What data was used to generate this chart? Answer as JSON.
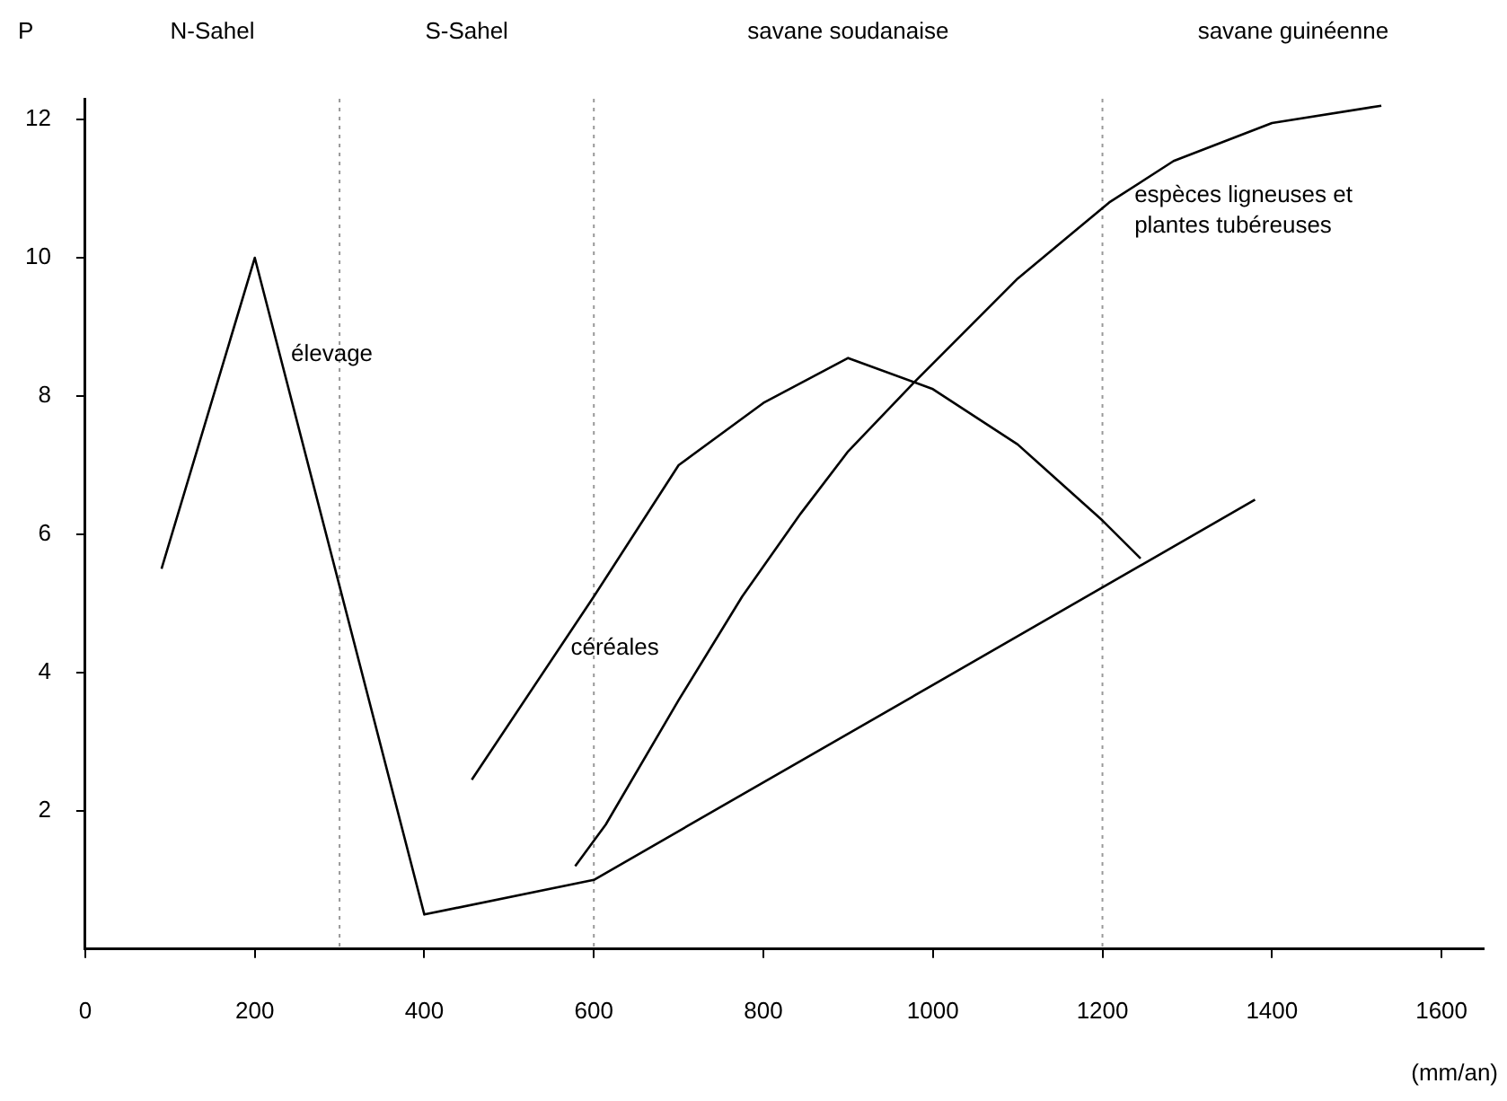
{
  "chart_data": {
    "type": "line",
    "ylabel": "P",
    "xlabel": "(mm/an)",
    "xlim": [
      0,
      1650
    ],
    "xticks": [
      0,
      200,
      400,
      600,
      800,
      1000,
      1200,
      1400,
      1600
    ],
    "ylim": [
      0,
      12.3
    ],
    "yticks": [
      2,
      4,
      6,
      8,
      10,
      12
    ],
    "grid": false,
    "legend": false,
    "marker": "none",
    "line_style": "solid",
    "series": [
      {
        "color": "#000000",
        "x": [
          90,
          200,
          400,
          600,
          1380
        ],
        "values": [
          5.5,
          10,
          0.5,
          1,
          6.5
        ]
      },
      {
        "color": "#000000",
        "x": [
          456,
          600,
          700,
          800,
          900,
          1000,
          1100,
          1200,
          1245
        ],
        "values": [
          2.45,
          5.1,
          7,
          7.9,
          8.55,
          8.1,
          7.3,
          6.2,
          5.65
        ]
      },
      {
        "color": "#000000",
        "x": [
          578,
          614,
          700,
          775,
          844,
          900,
          978,
          1100,
          1208,
          1284,
          1400,
          1529
        ],
        "values": [
          1.2,
          1.8,
          3.6,
          5.1,
          6.3,
          7.2,
          8.2,
          9.7,
          10.8,
          11.4,
          11.95,
          12.2
        ]
      }
    ],
    "ref_lines": [
      {
        "axis": "x",
        "value": 300,
        "color": "#999999",
        "line_style": "dotted"
      },
      {
        "axis": "x",
        "value": 600,
        "color": "#999999",
        "line_style": "dotted"
      },
      {
        "axis": "x",
        "value": 1200,
        "color": "#999999",
        "line_style": "dotted"
      }
    ],
    "annotations": [
      "N-Sahel",
      "S-Sahel",
      "savane soudanaise",
      "savane guinéenne",
      {
        "text": "élevage",
        "x": 230,
        "y": 8.6
      },
      {
        "text": "céréales",
        "x": 560,
        "y": 4.35
      },
      {
        "text": "espèces ligneuses et\nplantes tubéreuses",
        "x": 1225,
        "y": 10.9
      }
    ]
  }
}
